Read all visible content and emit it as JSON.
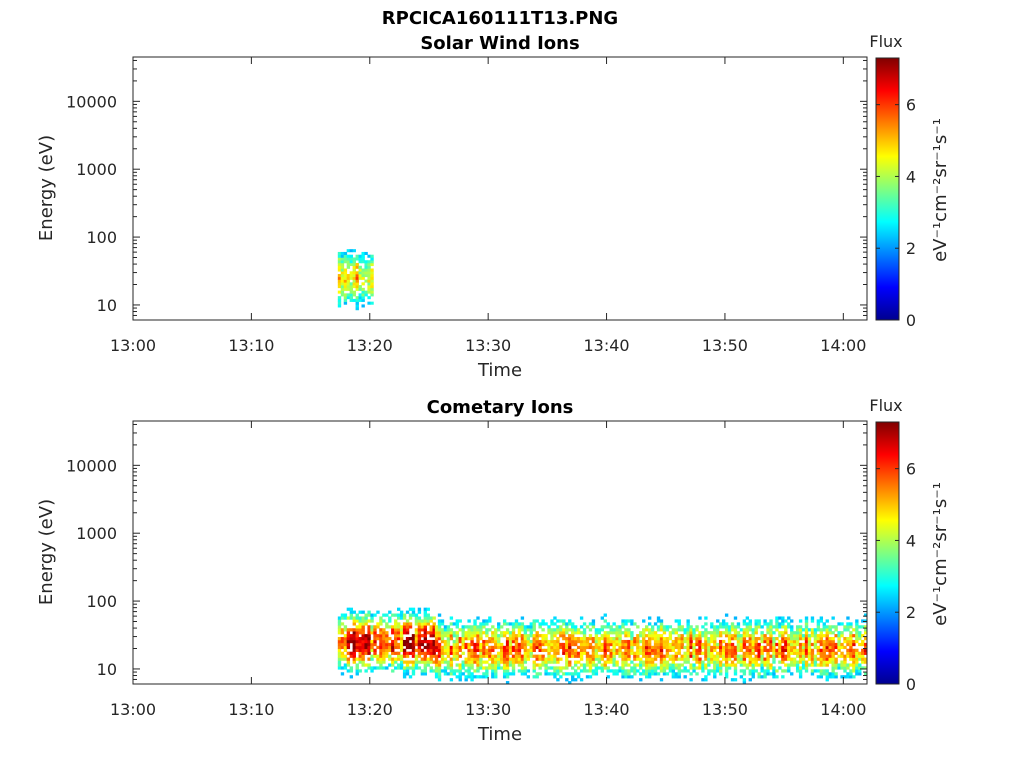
{
  "figure_title": "RPCICA160111T13.PNG",
  "colorbar": {
    "label": "Flux",
    "unit": "eV⁻¹cm⁻²sr⁻¹s⁻¹",
    "ticks": [
      "0",
      "2",
      "4",
      "6"
    ],
    "range": [
      0,
      7.3
    ],
    "colormap": "jet"
  },
  "chart_data": [
    {
      "type": "heatmap",
      "title": "Solar Wind Ions",
      "xlabel": "Time",
      "ylabel": "Energy (eV)",
      "x_ticks": [
        "13:00",
        "13:10",
        "13:20",
        "13:30",
        "13:40",
        "13:50",
        "14:00"
      ],
      "y_ticks": [
        "10",
        "100",
        "1000",
        "10000"
      ],
      "y_scale": "log",
      "xlim_minutes_after_13": [
        0,
        62
      ],
      "ylim": [
        6,
        45000
      ],
      "active_intervals": [
        {
          "t_start_minutes_after_13": 17.3,
          "t_end_minutes_after_13": 20.3,
          "energy_range_eV": [
            7,
            80
          ],
          "peak_flux": 5.3,
          "peak_energy_eV": 25
        }
      ]
    },
    {
      "type": "heatmap",
      "title": "Cometary Ions",
      "xlabel": "Time",
      "ylabel": "Energy (eV)",
      "x_ticks": [
        "13:00",
        "13:10",
        "13:20",
        "13:30",
        "13:40",
        "13:50",
        "14:00"
      ],
      "y_ticks": [
        "10",
        "100",
        "1000",
        "10000"
      ],
      "y_scale": "log",
      "xlim_minutes_after_13": [
        0,
        62
      ],
      "ylim": [
        6,
        45000
      ],
      "active_intervals": [
        {
          "t_start_minutes_after_13": 17.3,
          "t_end_minutes_after_13": 25.5,
          "energy_range_eV": [
            6,
            80
          ],
          "peak_flux": 6.8,
          "peak_energy_eV": 25
        },
        {
          "t_start_minutes_after_13": 25.5,
          "t_end_minutes_after_13": 62,
          "energy_range_eV": [
            6,
            80
          ],
          "peak_flux": 5.8,
          "peak_energy_eV": 20
        }
      ]
    }
  ]
}
